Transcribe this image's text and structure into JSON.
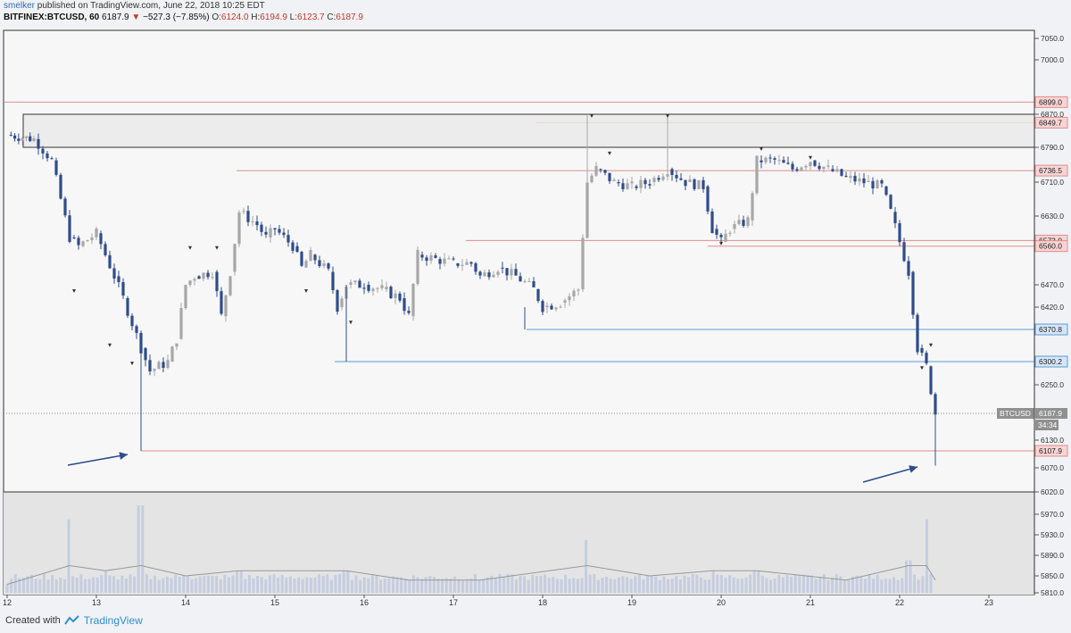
{
  "header": {
    "line1_user": "smelker",
    "line1_rest": "published on TradingView.com, June 22, 2018 10:25 EDT",
    "symbol": "BITFINEX:BTCUSD, 60",
    "last": "6187.9",
    "arrow": "▼",
    "change": "−527.3 (−7.85%)",
    "o_label": "O:",
    "o_value": "6124.0",
    "h_label": "H:",
    "h_value": "6194.9",
    "l_label": "L:",
    "l_value": "6123.7",
    "c_label": "C:",
    "c_value": "6187.9"
  },
  "footer": {
    "created_with": "Created with",
    "brand": "TradingView"
  },
  "colors": {
    "bull": "#a7a7a7",
    "bear": "#2f4c8a",
    "support": "#e08d8d",
    "level_blue": "#5b9bd5",
    "price_tag": "#909090",
    "volume_bar": "#c5cde0",
    "zone": "#e8e8e8"
  },
  "chart_data": {
    "type": "candlestick",
    "symbol": "BTCUSD",
    "timeframe": "60",
    "xlabel": "",
    "ylabel": "",
    "ylim": [
      5810,
      7070
    ],
    "yticks": [
      7050.0,
      7000.0,
      6870.0,
      6790.0,
      6710.0,
      6630.0,
      6470.0,
      6420.0,
      6250.0,
      6130.0,
      6070.0,
      6020.0,
      5970.0,
      5930.0,
      5890.0,
      5850.0,
      5810.0
    ],
    "x_tick_labels": [
      "12",
      "13",
      "14",
      "15",
      "16",
      "17",
      "18",
      "19",
      "20",
      "21",
      "22",
      "23"
    ],
    "current_price": {
      "symbol": "BTCUSD",
      "value": "6187.9",
      "countdown": "34:34"
    },
    "horizontal_levels": [
      {
        "value": "6899.0",
        "color": "red"
      },
      {
        "value": "6849.7",
        "color": "red"
      },
      {
        "value": "6736.5",
        "color": "red"
      },
      {
        "value": "6573.0",
        "color": "red"
      },
      {
        "value": "6560.0",
        "color": "red"
      },
      {
        "value": "6370.8",
        "color": "blue"
      },
      {
        "value": "6300.2",
        "color": "blue"
      },
      {
        "value": "6107.9",
        "color": "red"
      }
    ],
    "resistance_zone": [
      6790,
      6870
    ],
    "price_series_close": [
      [
        12.0,
        6820
      ],
      [
        12.3,
        6810
      ],
      [
        12.5,
        6760
      ],
      [
        12.7,
        6580
      ],
      [
        12.8,
        6560
      ],
      [
        13.0,
        6590
      ],
      [
        13.2,
        6490
      ],
      [
        13.3,
        6440
      ],
      [
        13.5,
        6330
      ],
      [
        13.6,
        6280
      ],
      [
        13.8,
        6300
      ],
      [
        13.9,
        6350
      ],
      [
        14.0,
        6470
      ],
      [
        14.1,
        6490
      ],
      [
        14.3,
        6500
      ],
      [
        14.4,
        6400
      ],
      [
        14.5,
        6500
      ],
      [
        14.6,
        6640
      ],
      [
        14.8,
        6610
      ],
      [
        14.9,
        6580
      ],
      [
        15.0,
        6600
      ],
      [
        15.2,
        6560
      ],
      [
        15.3,
        6510
      ],
      [
        15.4,
        6540
      ],
      [
        15.6,
        6500
      ],
      [
        15.7,
        6420
      ],
      [
        15.8,
        6470
      ],
      [
        16.0,
        6470
      ],
      [
        16.2,
        6460
      ],
      [
        16.4,
        6440
      ],
      [
        16.5,
        6400
      ],
      [
        16.6,
        6540
      ],
      [
        16.8,
        6530
      ],
      [
        17.0,
        6520
      ],
      [
        17.2,
        6520
      ],
      [
        17.3,
        6490
      ],
      [
        17.5,
        6510
      ],
      [
        17.7,
        6490
      ],
      [
        17.9,
        6460
      ],
      [
        18.0,
        6420
      ],
      [
        18.2,
        6430
      ],
      [
        18.4,
        6460
      ],
      [
        18.5,
        6710
      ],
      [
        18.6,
        6740
      ],
      [
        18.8,
        6710
      ],
      [
        19.0,
        6700
      ],
      [
        19.2,
        6710
      ],
      [
        19.4,
        6740
      ],
      [
        19.6,
        6710
      ],
      [
        19.8,
        6700
      ],
      [
        19.9,
        6600
      ],
      [
        20.0,
        6570
      ],
      [
        20.1,
        6600
      ],
      [
        20.3,
        6620
      ],
      [
        20.4,
        6760
      ],
      [
        20.6,
        6760
      ],
      [
        20.8,
        6740
      ],
      [
        21.0,
        6760
      ],
      [
        21.2,
        6740
      ],
      [
        21.4,
        6720
      ],
      [
        21.6,
        6710
      ],
      [
        21.8,
        6700
      ],
      [
        21.9,
        6640
      ],
      [
        22.1,
        6500
      ],
      [
        22.2,
        6330
      ],
      [
        22.3,
        6290
      ],
      [
        22.4,
        6187.9
      ]
    ],
    "volume_series": [
      [
        12.0,
        5830
      ],
      [
        12.7,
        5960
      ],
      [
        13.1,
        5860
      ],
      [
        13.5,
        5990
      ],
      [
        14.0,
        5850
      ],
      [
        14.6,
        5860
      ],
      [
        15.8,
        5860
      ],
      [
        16.5,
        5840
      ],
      [
        17.3,
        5840
      ],
      [
        18.5,
        5920
      ],
      [
        19.2,
        5850
      ],
      [
        19.9,
        5860
      ],
      [
        20.4,
        5860
      ],
      [
        21.4,
        5840
      ],
      [
        22.1,
        5880
      ],
      [
        22.3,
        5960
      ],
      [
        22.4,
        5840
      ]
    ]
  }
}
